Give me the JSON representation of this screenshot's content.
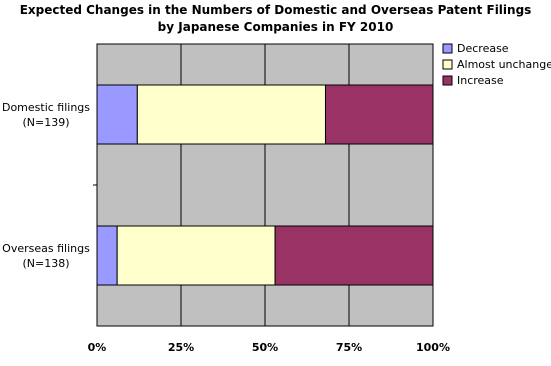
{
  "chart_data": {
    "type": "stacked-bar-horizontal",
    "title": "Expected Changes in the Numbers of Domestic and Overseas Patent Filings\nby Japanese Companies in FY 2010",
    "categories": [
      "Domestic filings\n(N=139)",
      "Overseas filings\n(N=138)"
    ],
    "series": [
      {
        "name": "Decrease",
        "color": "#9999ff",
        "values": [
          12,
          6
        ]
      },
      {
        "name": "Almost unchanged",
        "color": "#ffffcc",
        "values": [
          56,
          47
        ]
      },
      {
        "name": "Increase",
        "color": "#993366",
        "values": [
          32,
          47
        ]
      }
    ],
    "xlim": [
      0,
      100
    ],
    "xticks": [
      {
        "value": 0,
        "label": "0%"
      },
      {
        "value": 25,
        "label": "25%"
      },
      {
        "value": 50,
        "label": "50%"
      },
      {
        "value": 75,
        "label": "75%"
      },
      {
        "value": 100,
        "label": "100%"
      }
    ],
    "grid": true,
    "legend": "right"
  }
}
